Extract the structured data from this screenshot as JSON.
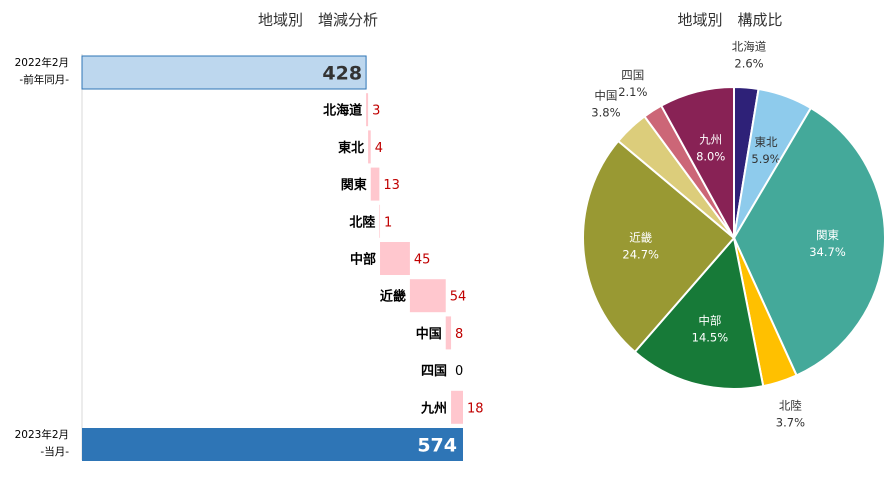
{
  "chart_data": [
    {
      "type": "bar",
      "subtype": "waterfall",
      "title": "地域別　増減分析",
      "start": {
        "label_line1": "2022年2月",
        "label_line2": "-前年同月-",
        "value": 428
      },
      "end": {
        "label_line1": "2023年2月",
        "label_line2": "-当月-",
        "value": 574
      },
      "categories": [
        "北海道",
        "東北",
        "関東",
        "北陸",
        "中部",
        "近畿",
        "中国",
        "四国",
        "九州"
      ],
      "values": [
        3,
        4,
        13,
        1,
        45,
        54,
        8,
        0,
        18
      ],
      "value_labels": [
        "3",
        "4",
        "13",
        "1",
        "45",
        "54",
        "8",
        "0",
        "18"
      ],
      "colors": {
        "start": "#bdd7ee",
        "start_border": "#2e75b6",
        "end": "#2e75b6",
        "increase": "#ffc7ce",
        "increase_label": "#c00000"
      }
    },
    {
      "type": "pie",
      "title": "地域別　構成比",
      "slices": [
        {
          "name": "北海道",
          "value": 2.6,
          "label": "2.6%",
          "color": "#2e2178"
        },
        {
          "name": "東北",
          "value": 5.9,
          "label": "5.9%",
          "color": "#8ecbec"
        },
        {
          "name": "関東",
          "value": 34.7,
          "label": "34.7%",
          "color": "#44a99a"
        },
        {
          "name": "北陸",
          "value": 3.7,
          "label": "3.7%",
          "color": "#ffc000"
        },
        {
          "name": "中部",
          "value": 14.5,
          "label": "14.5%",
          "color": "#177a38"
        },
        {
          "name": "近畿",
          "value": 24.7,
          "label": "24.7%",
          "color": "#999933"
        },
        {
          "name": "中国",
          "value": 3.8,
          "label": "3.8%",
          "color": "#dccd7b"
        },
        {
          "name": "四国",
          "value": 2.1,
          "label": "2.1%",
          "color": "#cc6677"
        },
        {
          "name": "九州",
          "value": 8.0,
          "label": "8.0%",
          "color": "#882255"
        }
      ]
    }
  ]
}
